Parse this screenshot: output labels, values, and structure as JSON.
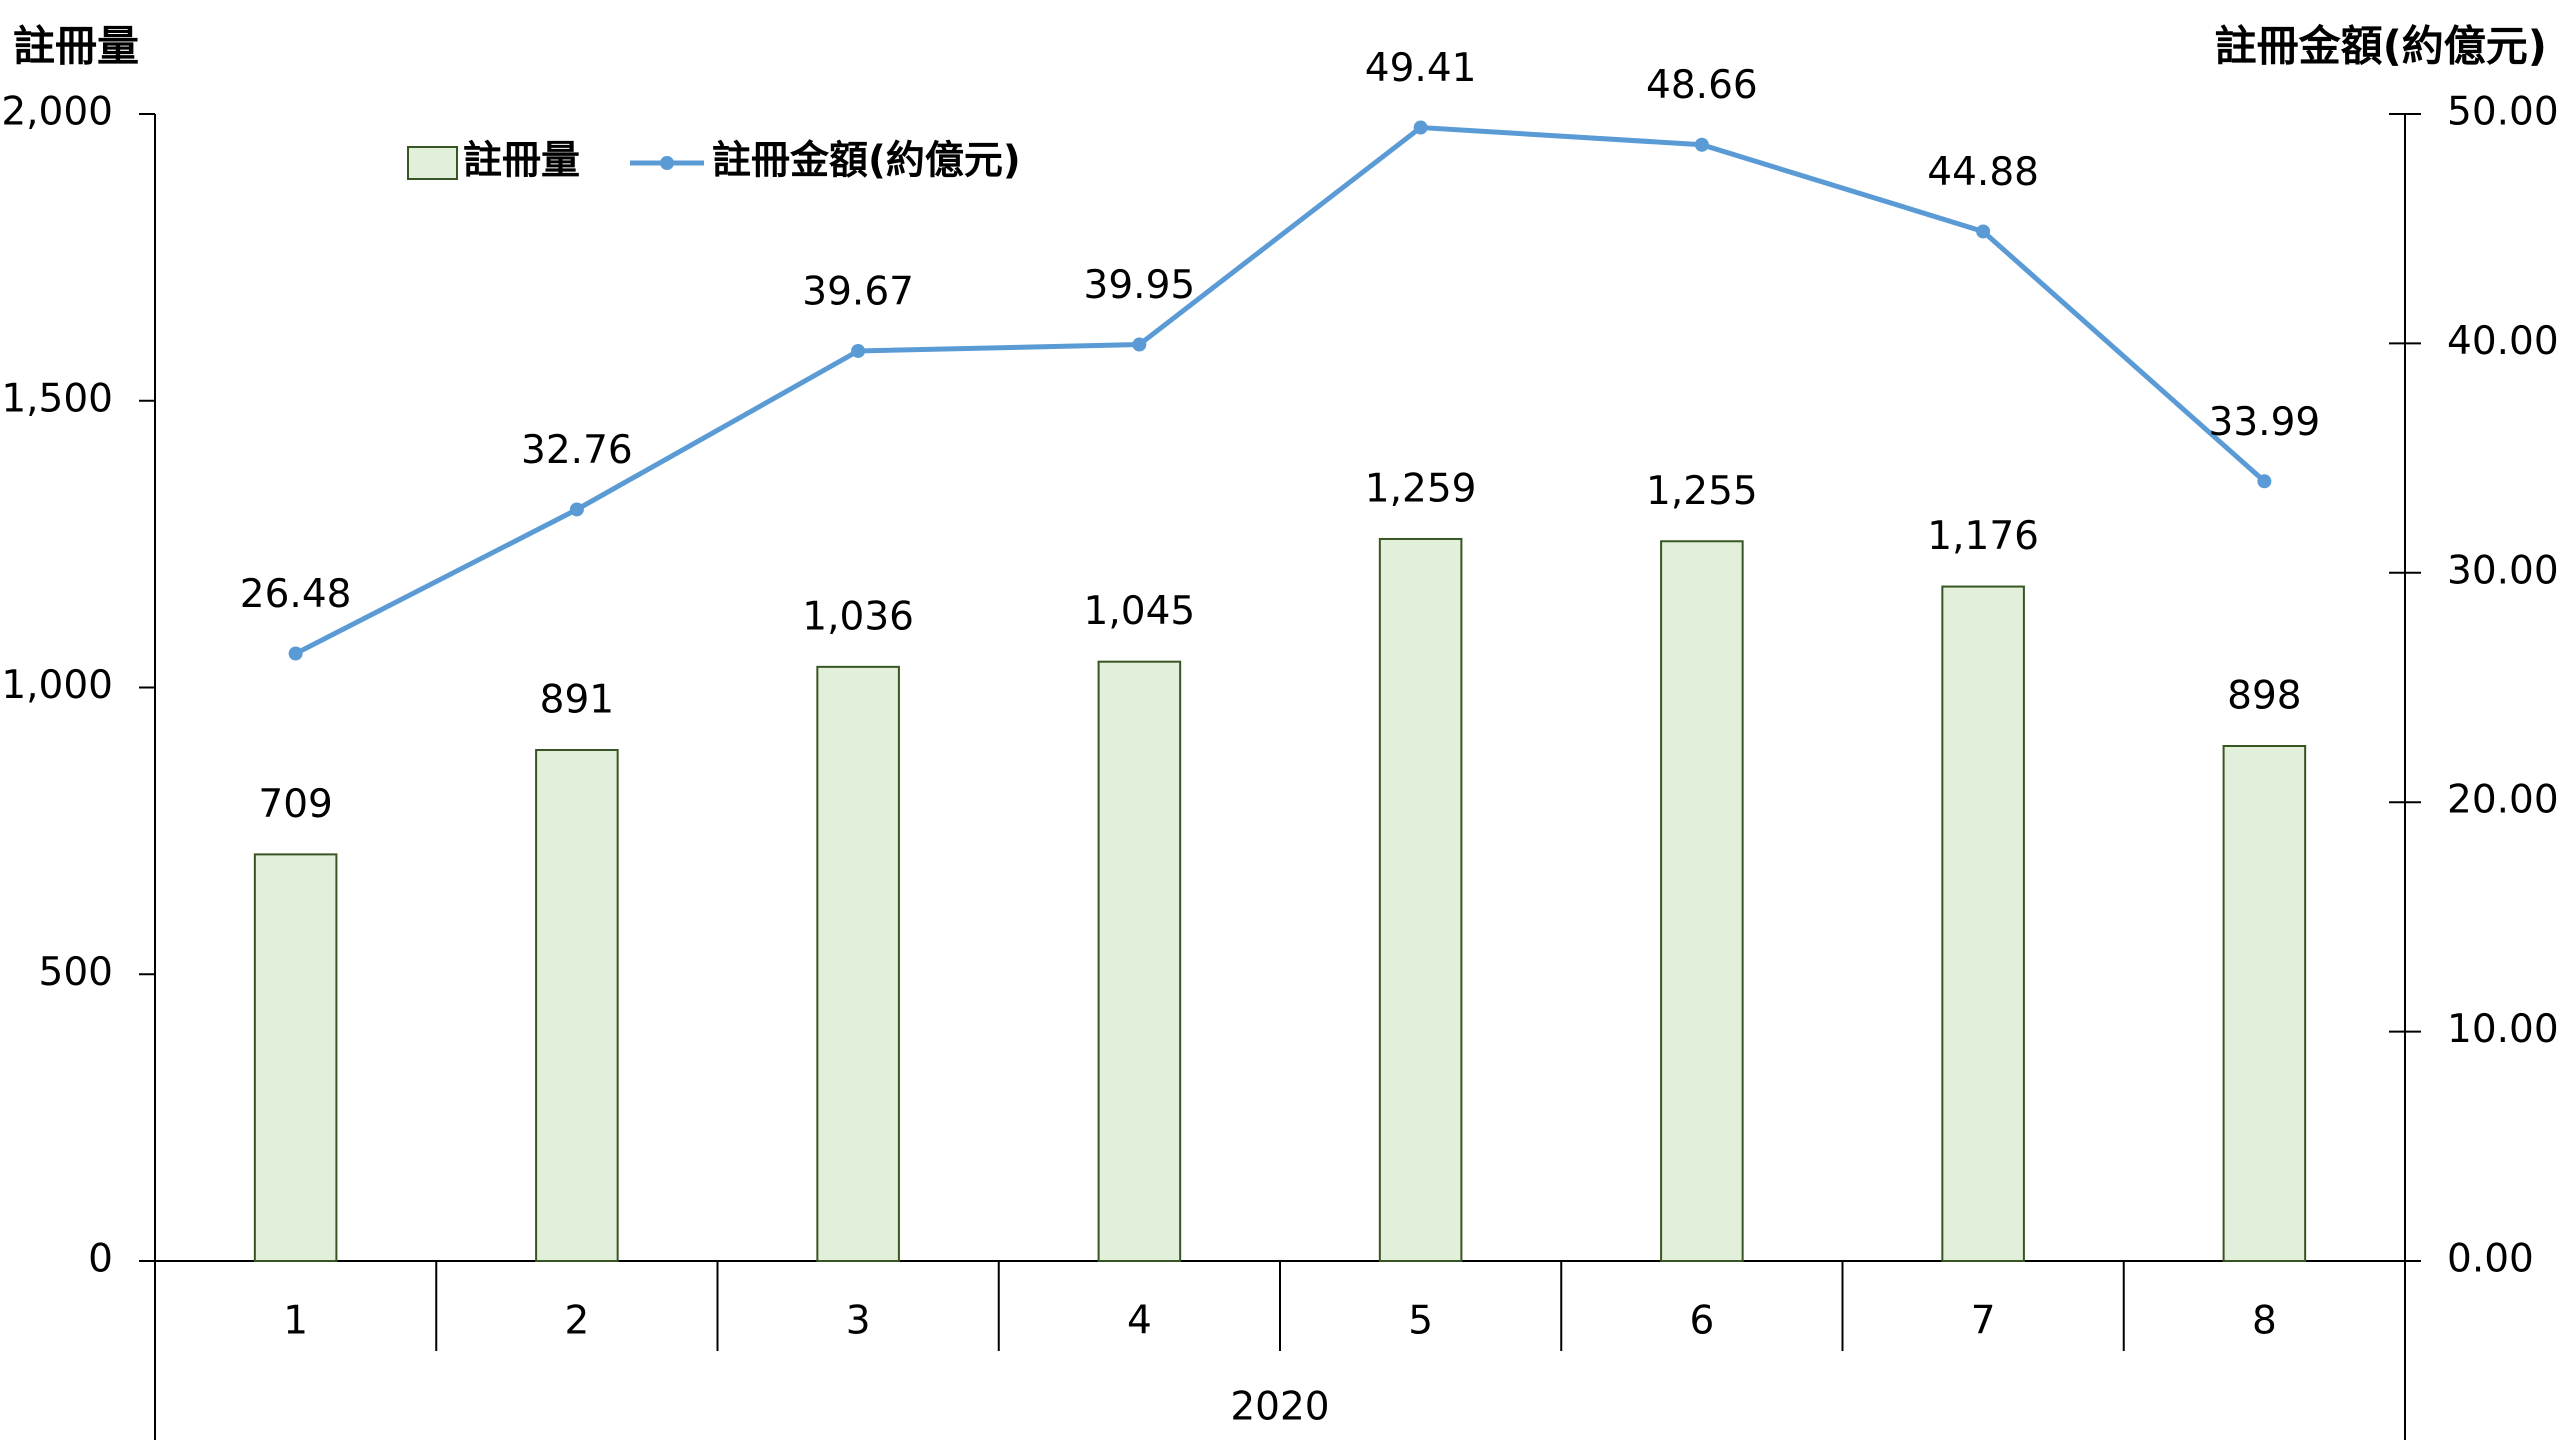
{
  "chart_data": {
    "type": "combo",
    "ylabel": "註冊量",
    "y2label": "註冊金額(約億元)",
    "categories": [
      "1",
      "2",
      "3",
      "4",
      "5",
      "6",
      "7",
      "8"
    ],
    "group_label": "2020",
    "series": [
      {
        "name": "註冊量",
        "type": "bar",
        "color": "#e2efda",
        "edge_color": "#375623",
        "values": [
          709,
          891,
          1036,
          1045,
          1259,
          1255,
          1176,
          898
        ],
        "value_labels": [
          "709",
          "891",
          "1,036",
          "1,045",
          "1,259",
          "1,255",
          "1,176",
          "898"
        ]
      },
      {
        "name": "註冊金額(約億元)",
        "type": "line",
        "axis": "y2",
        "color": "#5b9bd5",
        "values": [
          26.48,
          32.76,
          39.67,
          39.95,
          49.41,
          48.66,
          44.88,
          33.99
        ]
      }
    ],
    "ylim": [
      0,
      2000
    ],
    "yticks": [
      0,
      500,
      {
        "value": 1000,
        "label": "1,000"
      },
      {
        "value": 1500,
        "label": "1,500"
      },
      {
        "value": 2000,
        "label": "2,000"
      }
    ],
    "y2lim": [
      0,
      50
    ],
    "y2ticks": [
      {
        "value": 0,
        "label": "0.00"
      },
      {
        "value": 10,
        "label": "10.00"
      },
      {
        "value": 20,
        "label": "20.00"
      },
      {
        "value": 30,
        "label": "30.00"
      },
      {
        "value": 40,
        "label": "40.00"
      },
      {
        "value": 50,
        "label": "50.00"
      }
    ]
  }
}
